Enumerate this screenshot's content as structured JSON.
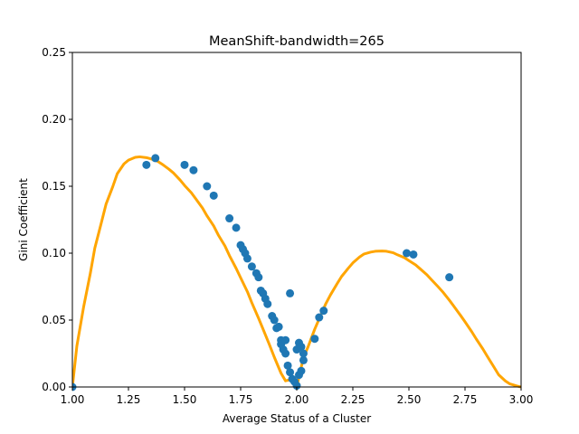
{
  "chart_data": {
    "type": "scatter",
    "title": "MeanShift-bandwidth=265",
    "xlabel": "Average Status of a Cluster",
    "ylabel": "Gini Coefficient",
    "xlim": [
      1.0,
      3.0
    ],
    "ylim": [
      0.0,
      0.25
    ],
    "xticks": [
      "1.00",
      "1.25",
      "1.50",
      "1.75",
      "2.00",
      "2.25",
      "2.50",
      "2.75",
      "3.00"
    ],
    "yticks": [
      "0.00",
      "0.05",
      "0.10",
      "0.15",
      "0.20",
      "0.25"
    ],
    "grid": false,
    "colors": {
      "curve": "#FFA500",
      "points": "#1F77B4"
    },
    "series": [
      {
        "type": "line",
        "x": [
          1.0,
          1.02,
          1.05,
          1.08,
          1.1,
          1.13,
          1.15,
          1.18,
          1.2,
          1.23,
          1.25,
          1.28,
          1.3,
          1.33,
          1.35,
          1.38,
          1.4,
          1.43,
          1.45,
          1.48,
          1.5,
          1.53,
          1.55,
          1.58,
          1.6,
          1.63,
          1.65,
          1.68,
          1.7,
          1.73,
          1.75,
          1.78,
          1.8,
          1.83,
          1.85,
          1.88,
          1.9,
          1.93,
          1.95,
          1.98,
          2.0,
          2.03,
          2.05,
          2.08,
          2.1,
          2.13,
          2.15,
          2.18,
          2.2,
          2.23,
          2.25,
          2.28,
          2.3,
          2.33,
          2.35,
          2.38,
          2.4,
          2.43,
          2.45,
          2.48,
          2.5,
          2.53,
          2.55,
          2.58,
          2.6,
          2.63,
          2.65,
          2.68,
          2.7,
          2.73,
          2.75,
          2.78,
          2.8,
          2.83,
          2.85,
          2.88,
          2.9,
          2.93,
          2.95,
          2.98,
          3.0
        ],
        "y": [
          0.0,
          0.0306,
          0.0597,
          0.0849,
          0.1038,
          0.1233,
          0.1366,
          0.1497,
          0.1594,
          0.1667,
          0.1695,
          0.1716,
          0.172,
          0.1714,
          0.1705,
          0.1687,
          0.1665,
          0.1628,
          0.16,
          0.1547,
          0.1506,
          0.1452,
          0.1406,
          0.1337,
          0.1279,
          0.1203,
          0.1137,
          0.1054,
          0.0982,
          0.0886,
          0.0816,
          0.0712,
          0.0629,
          0.0513,
          0.0432,
          0.0309,
          0.0223,
          0.0103,
          0.0046,
          0.0059,
          0.0,
          0.0221,
          0.0298,
          0.0431,
          0.0509,
          0.0624,
          0.0687,
          0.0772,
          0.0826,
          0.0888,
          0.0927,
          0.0971,
          0.0994,
          0.1008,
          0.1014,
          0.1016,
          0.1014,
          0.1003,
          0.0987,
          0.0966,
          0.0944,
          0.0912,
          0.0883,
          0.0839,
          0.0802,
          0.0749,
          0.0712,
          0.0649,
          0.0604,
          0.0535,
          0.0487,
          0.0413,
          0.0359,
          0.0283,
          0.0227,
          0.0146,
          0.0091,
          0.0045,
          0.0023,
          0.0008,
          0.0
        ]
      },
      {
        "type": "scatter",
        "x": [
          1.0,
          1.33,
          1.37,
          1.5,
          1.54,
          1.6,
          1.63,
          1.7,
          1.73,
          1.75,
          1.76,
          1.77,
          1.78,
          1.8,
          1.82,
          1.83,
          1.84,
          1.85,
          1.86,
          1.87,
          1.89,
          1.9,
          1.91,
          1.92,
          1.93,
          1.93,
          1.94,
          1.95,
          1.95,
          1.96,
          1.97,
          1.97,
          1.98,
          1.99,
          2.0,
          2.0,
          2.01,
          2.01,
          2.02,
          2.02,
          2.03,
          2.03,
          2.08,
          2.1,
          2.12,
          2.49,
          2.52,
          2.68
        ],
        "y": [
          0.0,
          0.166,
          0.171,
          0.166,
          0.162,
          0.15,
          0.143,
          0.126,
          0.119,
          0.106,
          0.103,
          0.1,
          0.096,
          0.09,
          0.085,
          0.082,
          0.072,
          0.07,
          0.066,
          0.062,
          0.053,
          0.05,
          0.044,
          0.045,
          0.035,
          0.032,
          0.028,
          0.025,
          0.035,
          0.016,
          0.07,
          0.011,
          0.006,
          0.004,
          0.001,
          0.028,
          0.033,
          0.009,
          0.012,
          0.03,
          0.02,
          0.025,
          0.036,
          0.052,
          0.057,
          0.1,
          0.099,
          0.082
        ]
      }
    ]
  }
}
